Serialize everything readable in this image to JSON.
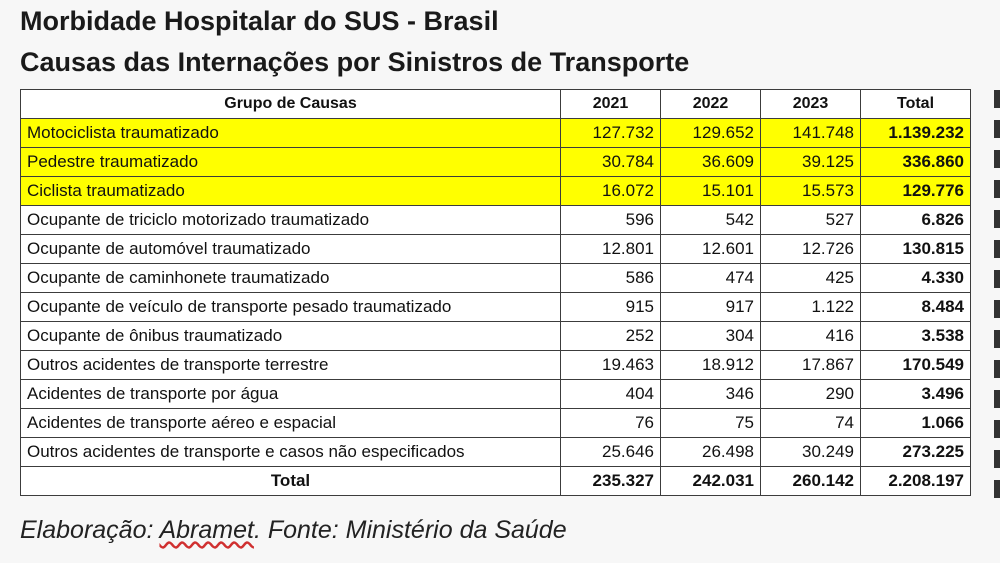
{
  "title_line1": "Morbidade Hospitalar do SUS - Brasil",
  "title_line2": "Causas das Internações por Sinistros de Transporte",
  "highlight_color": "#ffff00",
  "chart_data": {
    "type": "table",
    "columns": [
      "Grupo de Causas",
      "2021",
      "2022",
      "2023",
      "Total"
    ],
    "rows": [
      {
        "cause": "Motociclista traumatizado",
        "y2021": "127.732",
        "y2022": "129.652",
        "y2023": "141.748",
        "total": "1.139.232",
        "highlight": true
      },
      {
        "cause": "Pedestre traumatizado",
        "y2021": "30.784",
        "y2022": "36.609",
        "y2023": "39.125",
        "total": "336.860",
        "highlight": true
      },
      {
        "cause": "Ciclista traumatizado",
        "y2021": "16.072",
        "y2022": "15.101",
        "y2023": "15.573",
        "total": "129.776",
        "highlight": true
      },
      {
        "cause": "Ocupante de triciclo motorizado traumatizado",
        "y2021": "596",
        "y2022": "542",
        "y2023": "527",
        "total": "6.826",
        "highlight": false
      },
      {
        "cause": "Ocupante de automóvel traumatizado",
        "y2021": "12.801",
        "y2022": "12.601",
        "y2023": "12.726",
        "total": "130.815",
        "highlight": false
      },
      {
        "cause": "Ocupante de caminhonete traumatizado",
        "y2021": "586",
        "y2022": "474",
        "y2023": "425",
        "total": "4.330",
        "highlight": false
      },
      {
        "cause": "Ocupante de veículo de transporte pesado traumatizado",
        "y2021": "915",
        "y2022": "917",
        "y2023": "1.122",
        "total": "8.484",
        "highlight": false
      },
      {
        "cause": "Ocupante de ônibus traumatizado",
        "y2021": "252",
        "y2022": "304",
        "y2023": "416",
        "total": "3.538",
        "highlight": false
      },
      {
        "cause": "Outros acidentes de transporte terrestre",
        "y2021": "19.463",
        "y2022": "18.912",
        "y2023": "17.867",
        "total": "170.549",
        "highlight": false
      },
      {
        "cause": "Acidentes de transporte por água",
        "y2021": "404",
        "y2022": "346",
        "y2023": "290",
        "total": "3.496",
        "highlight": false
      },
      {
        "cause": "Acidentes de transporte aéreo e espacial",
        "y2021": "76",
        "y2022": "75",
        "y2023": "74",
        "total": "1.066",
        "highlight": false
      },
      {
        "cause": "Outros acidentes de transporte e casos não especificados",
        "y2021": "25.646",
        "y2022": "26.498",
        "y2023": "30.249",
        "total": "273.225",
        "highlight": false
      }
    ],
    "total_row": {
      "label": "Total",
      "y2021": "235.327",
      "y2022": "242.031",
      "y2023": "260.142",
      "total": "2.208.197"
    }
  },
  "footer": {
    "prefix": "Elaboração: ",
    "org": "Abramet",
    "suffix": ". Fonte: Ministério da Saúde"
  }
}
